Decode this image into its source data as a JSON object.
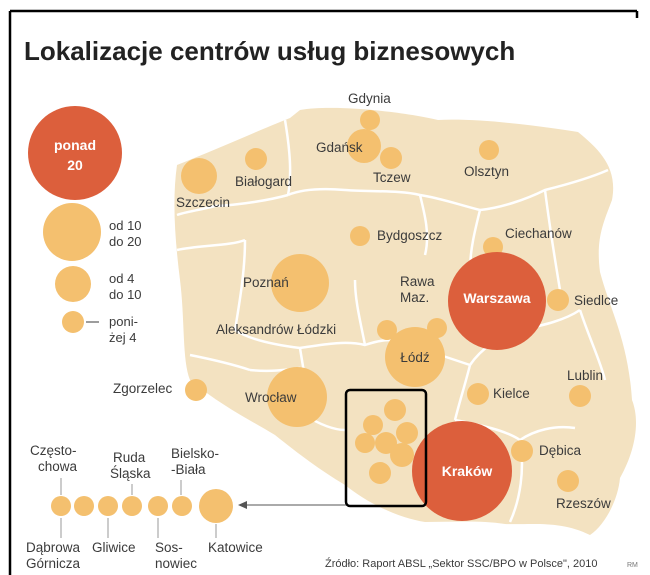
{
  "title": "Lokalizacje centrów usług biznesowych",
  "colors": {
    "map": "#f3e2c1",
    "border": "#ffffff",
    "small": "#f4c06f",
    "large": "#dc5f3c",
    "frame": "#000000"
  },
  "legend": [
    {
      "size": "large",
      "text": [
        "ponad",
        "20"
      ]
    },
    {
      "size": "medium",
      "text": [
        "od 10",
        "do 20"
      ]
    },
    {
      "size": "small",
      "text": [
        "od 4",
        "do 10"
      ]
    },
    {
      "size": "smallest",
      "text": [
        "poni-",
        "żej 4"
      ]
    }
  ],
  "cities": {
    "gdynia": "Gdynia",
    "gdansk": "Gdańsk",
    "tczew": "Tczew",
    "olsztyn": "Olsztyn",
    "bialogard": "Białogard",
    "szczecin": "Szczecin",
    "bydgoszcz": "Bydgoszcz",
    "ciechanow": "Ciechanów",
    "rawa1": "Rawa",
    "rawa2": "Maz.",
    "warszawa": "Warszawa",
    "siedlce": "Siedlce",
    "poznan": "Poznań",
    "aleksandrow": "Aleksandrów Łódzki",
    "lodz": "Łódź",
    "lublin": "Lublin",
    "zgorzelec": "Zgorzelec",
    "wroclaw": "Wrocław",
    "kielce": "Kielce",
    "debica": "Dębica",
    "krakow": "Kraków",
    "rzeszow": "Rzeszów"
  },
  "silesia": {
    "czestochowa": [
      "Często-",
      "chowa"
    ],
    "ruda": [
      "Ruda",
      "Śląska"
    ],
    "bielsko": [
      "Bielsko-",
      "-Biała"
    ],
    "dabrowa": [
      "Dąbrowa",
      "Górnicza"
    ],
    "gliwice": "Gliwice",
    "sosnowiec": [
      "Sos-",
      "nowiec"
    ],
    "katowice": "Katowice"
  },
  "source": "Źródło: Raport ABSL „Sektor SSC/BPO w Polsce\", 2010",
  "credit": "RM"
}
